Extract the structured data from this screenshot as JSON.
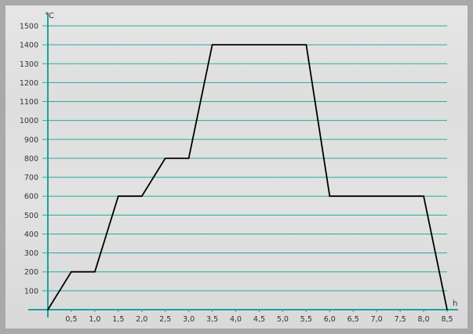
{
  "chart_data": {
    "type": "line",
    "title": "",
    "xlabel": "h",
    "ylabel": "°C",
    "x_ticks": [
      "0,5",
      "1,0",
      "1,5",
      "2,0",
      "2,5",
      "3,0",
      "3,5",
      "4,0",
      "4,5",
      "5,0",
      "5,5",
      "6,0",
      "6,5",
      "7,0",
      "7,5",
      "8,0",
      "8,5"
    ],
    "x_tick_values": [
      0.5,
      1.0,
      1.5,
      2.0,
      2.5,
      3.0,
      3.5,
      4.0,
      4.5,
      5.0,
      5.5,
      6.0,
      6.5,
      7.0,
      7.5,
      8.0,
      8.5
    ],
    "y_ticks": [
      "100",
      "200",
      "300",
      "400",
      "500",
      "600",
      "700",
      "800",
      "900",
      "1000",
      "1100",
      "1200",
      "1300",
      "1400",
      "1500"
    ],
    "y_tick_values": [
      100,
      200,
      300,
      400,
      500,
      600,
      700,
      800,
      900,
      1000,
      1100,
      1200,
      1300,
      1400,
      1500
    ],
    "xlim": [
      0,
      8.5
    ],
    "ylim": [
      0,
      1500
    ],
    "grid": true,
    "series": [
      {
        "x": [
          0,
          0.5,
          1.0,
          1.5,
          2.0,
          2.5,
          3.0,
          3.5,
          4.0,
          5.5,
          6.0,
          8.0,
          8.5
        ],
        "y": [
          0,
          200,
          200,
          600,
          600,
          800,
          800,
          1400,
          1400,
          1400,
          600,
          600,
          0
        ],
        "color": "#000000"
      }
    ],
    "colors": {
      "axis": "#1aa39a",
      "grid": "#2aa9a0",
      "line": "#000000",
      "frame": "#a9a9a9"
    }
  }
}
